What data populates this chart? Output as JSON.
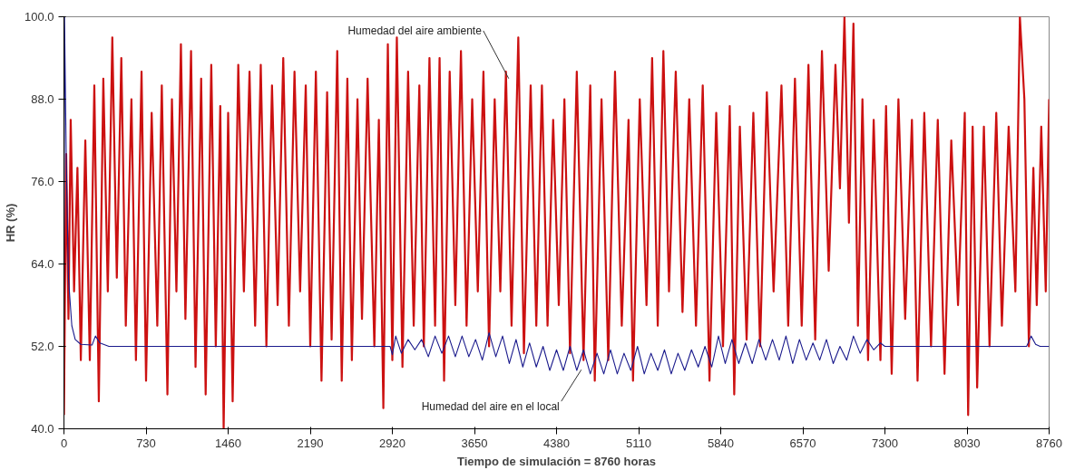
{
  "chart_data": {
    "type": "line",
    "xlabel": "Tiempo de simulación = 8760 horas",
    "ylabel": "HR (%)",
    "xlim": [
      0,
      8760
    ],
    "ylim": [
      40,
      100
    ],
    "xticks": [
      0,
      730,
      1460,
      2190,
      2920,
      3650,
      4380,
      5110,
      5840,
      6570,
      7300,
      8030,
      8760
    ],
    "yticks": [
      {
        "value": 40,
        "label": "40.0"
      },
      {
        "value": 52,
        "label": "52.0"
      },
      {
        "value": 64,
        "label": "64.0"
      },
      {
        "value": 76,
        "label": "76.0"
      },
      {
        "value": 88,
        "label": "88.0"
      },
      {
        "value": 100,
        "label": "100.0"
      }
    ],
    "grid": false,
    "marker": "none",
    "line_style": "solid",
    "series": [
      {
        "color": "#cc1111",
        "x": [
          0,
          20,
          40,
          60,
          90,
          120,
          150,
          190,
          230,
          270,
          310,
          350,
          390,
          430,
          470,
          510,
          550,
          600,
          640,
          690,
          730,
          780,
          830,
          870,
          920,
          960,
          1000,
          1040,
          1080,
          1130,
          1170,
          1220,
          1260,
          1310,
          1350,
          1390,
          1420,
          1460,
          1500,
          1550,
          1600,
          1650,
          1700,
          1750,
          1800,
          1850,
          1900,
          1950,
          2000,
          2050,
          2100,
          2150,
          2190,
          2240,
          2290,
          2340,
          2380,
          2430,
          2470,
          2520,
          2560,
          2610,
          2650,
          2700,
          2760,
          2800,
          2840,
          2880,
          2920,
          2960,
          3010,
          3060,
          3110,
          3160,
          3200,
          3250,
          3300,
          3340,
          3380,
          3430,
          3480,
          3530,
          3580,
          3630,
          3680,
          3730,
          3780,
          3830,
          3880,
          3930,
          3980,
          4040,
          4090,
          4150,
          4200,
          4250,
          4300,
          4350,
          4400,
          4450,
          4500,
          4560,
          4620,
          4680,
          4720,
          4780,
          4840,
          4900,
          4960,
          5020,
          5060,
          5120,
          5180,
          5230,
          5280,
          5330,
          5380,
          5440,
          5500,
          5560,
          5620,
          5680,
          5740,
          5800,
          5860,
          5920,
          5960,
          6010,
          6070,
          6130,
          6190,
          6250,
          6310,
          6380,
          6440,
          6500,
          6560,
          6620,
          6680,
          6740,
          6800,
          6860,
          6900,
          6940,
          6980,
          7020,
          7060,
          7100,
          7150,
          7200,
          7260,
          7310,
          7360,
          7420,
          7480,
          7540,
          7590,
          7650,
          7710,
          7770,
          7830,
          7890,
          7950,
          8010,
          8040,
          8080,
          8120,
          8180,
          8230,
          8290,
          8340,
          8400,
          8460,
          8500,
          8540,
          8580,
          8620,
          8650,
          8690,
          8730,
          8760
        ],
        "values": [
          42,
          80,
          56,
          85,
          60,
          78,
          50,
          82,
          50,
          90,
          44,
          91,
          60,
          97,
          62,
          94,
          55,
          88,
          50,
          92,
          47,
          86,
          55,
          90,
          45,
          88,
          60,
          96,
          56,
          95,
          49,
          91,
          45,
          93,
          52,
          87,
          40,
          86,
          44,
          93,
          60,
          92,
          55,
          93,
          52,
          90,
          58,
          94,
          55,
          92,
          60,
          90,
          52,
          92,
          47,
          89,
          53,
          95,
          47,
          91,
          50,
          88,
          56,
          91,
          52,
          85,
          43,
          96,
          50,
          97,
          49,
          92,
          55,
          90,
          52,
          94,
          55,
          94,
          47,
          92,
          58,
          95,
          55,
          88,
          60,
          92,
          52,
          88,
          60,
          92,
          55,
          97,
          51,
          90,
          55,
          90,
          55,
          85,
          58,
          88,
          51,
          92,
          50,
          90,
          47,
          88,
          50,
          92,
          55,
          85,
          47,
          88,
          58,
          94,
          55,
          95,
          60,
          92,
          57,
          88,
          55,
          90,
          47,
          86,
          52,
          87,
          45,
          84,
          53,
          86,
          52,
          89,
          60,
          90,
          55,
          91,
          55,
          93,
          53,
          95,
          63,
          93,
          75,
          100,
          70,
          99,
          55,
          88,
          50,
          85,
          50,
          87,
          48,
          88,
          56,
          85,
          47,
          86,
          52,
          85,
          48,
          82,
          58,
          86,
          42,
          84,
          46,
          84,
          52,
          86,
          55,
          84,
          60,
          100,
          88,
          52,
          78,
          58,
          84,
          60,
          88
        ]
      },
      {
        "color": "#1a1a8c",
        "x": [
          0,
          5,
          20,
          40,
          70,
          100,
          150,
          250,
          280,
          320,
          400,
          2900,
          2920,
          2950,
          3000,
          3060,
          3120,
          3180,
          3240,
          3300,
          3360,
          3420,
          3480,
          3540,
          3600,
          3660,
          3720,
          3780,
          3840,
          3900,
          3960,
          4020,
          4080,
          4140,
          4200,
          4260,
          4320,
          4380,
          4440,
          4500,
          4560,
          4620,
          4680,
          4740,
          4800,
          4860,
          4920,
          4980,
          5040,
          5100,
          5160,
          5220,
          5280,
          5340,
          5400,
          5460,
          5520,
          5580,
          5640,
          5700,
          5760,
          5820,
          5880,
          5940,
          6000,
          6060,
          6120,
          6180,
          6240,
          6300,
          6360,
          6420,
          6480,
          6540,
          6600,
          6660,
          6720,
          6780,
          6840,
          6900,
          6960,
          7020,
          7080,
          7140,
          7200,
          7260,
          7300,
          7360,
          8560,
          8600,
          8640,
          8680,
          8760
        ],
        "values": [
          52,
          100,
          80,
          62,
          55,
          53,
          52.3,
          52.2,
          53.5,
          52.5,
          52,
          52,
          50.8,
          53.5,
          51,
          53,
          51.5,
          53,
          50.5,
          53.5,
          51,
          53.5,
          50.5,
          53.5,
          50.5,
          53,
          50,
          54,
          50.5,
          53.5,
          49.5,
          53,
          49,
          52.5,
          49,
          52,
          48.5,
          51.5,
          48.5,
          52,
          48.5,
          51.5,
          48,
          51,
          48,
          51.5,
          48,
          51,
          48.5,
          52,
          48,
          51,
          48.5,
          51.5,
          48,
          51,
          48.5,
          51.5,
          49,
          52,
          49,
          53.5,
          49.5,
          53,
          49.5,
          52.5,
          49.5,
          53,
          50,
          53,
          50,
          53.5,
          49.5,
          53,
          50,
          52.5,
          50,
          53,
          49.5,
          52,
          50,
          53.5,
          51,
          53,
          51.5,
          52.5,
          52,
          52,
          52,
          53.5,
          52.3,
          52,
          52
        ]
      }
    ],
    "annotations": [
      {
        "text": "Humedad del aire ambiente",
        "x": 3955,
        "y": 91
      },
      {
        "text": "Humedad del aire en el local",
        "x": 4600,
        "y": 48.6
      }
    ]
  }
}
